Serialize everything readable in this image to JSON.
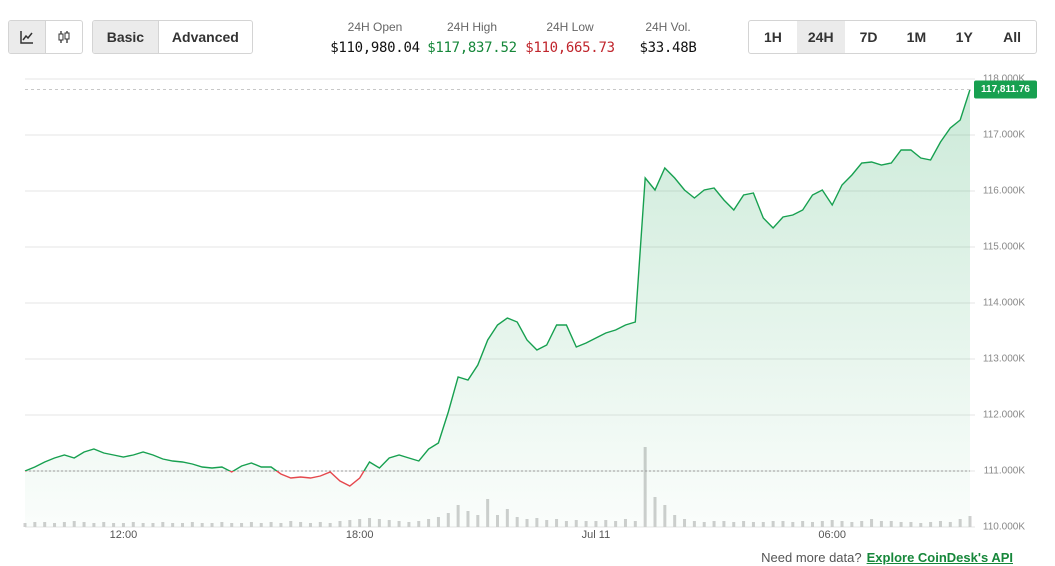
{
  "toolbar": {
    "modes": [
      "Basic",
      "Advanced"
    ],
    "active_mode": "Basic",
    "ranges": [
      "1H",
      "24H",
      "7D",
      "1M",
      "1Y",
      "All"
    ],
    "active_range": "24H"
  },
  "stats": [
    {
      "label": "24H Open",
      "value": "$110,980.04",
      "color": "#111111"
    },
    {
      "label": "24H High",
      "value": "$117,837.52",
      "color": "#16873a"
    },
    {
      "label": "24H Low",
      "value": "$110,665.73",
      "color": "#c0262d"
    },
    {
      "label": "24H Vol.",
      "value": "$33.48B",
      "color": "#111111"
    }
  ],
  "chart_data": {
    "type": "line",
    "categories": [
      null,
      null,
      null,
      null,
      null,
      null,
      null,
      null,
      null,
      null,
      "12:00",
      null,
      null,
      null,
      null,
      null,
      null,
      null,
      null,
      null,
      null,
      null,
      null,
      null,
      null,
      null,
      null,
      null,
      null,
      null,
      null,
      null,
      null,
      null,
      "18:00",
      null,
      null,
      null,
      null,
      null,
      null,
      null,
      null,
      null,
      null,
      null,
      null,
      null,
      null,
      null,
      null,
      null,
      null,
      null,
      null,
      null,
      null,
      null,
      "Jul 11",
      null,
      null,
      null,
      null,
      null,
      null,
      null,
      null,
      null,
      null,
      null,
      null,
      null,
      null,
      null,
      null,
      null,
      null,
      null,
      null,
      null,
      null,
      null,
      "06:00",
      null,
      null,
      null,
      null,
      null,
      null,
      null,
      null,
      null,
      null,
      null,
      null,
      null,
      null
    ],
    "series": [
      {
        "type": "line",
        "color": "#17a050",
        "down_color": "#e5484d",
        "values": [
          111000,
          111071,
          111161,
          111232,
          111286,
          111232,
          111339,
          111393,
          111321,
          111286,
          111250,
          111286,
          111339,
          111286,
          111214,
          111179,
          111161,
          111125,
          111071,
          111054,
          111071,
          110982,
          111089,
          111143,
          111071,
          111071,
          110946,
          110875,
          110893,
          110875,
          110911,
          110982,
          110821,
          110732,
          110875,
          111161,
          111054,
          111232,
          111286,
          111232,
          111179,
          111393,
          111500,
          112054,
          112679,
          112625,
          112893,
          113339,
          113607,
          113732,
          113661,
          113339,
          113161,
          113250,
          113607,
          113607,
          113214,
          113286,
          113375,
          113464,
          113518,
          113607,
          113661,
          116232,
          116018,
          116411,
          116232,
          116018,
          115875,
          116018,
          116054,
          115839,
          115661,
          115929,
          115964,
          115518,
          115339,
          115536,
          115571,
          115661,
          115929,
          116018,
          115750,
          116107,
          116286,
          116500,
          116518,
          116464,
          116500,
          116732,
          116732,
          116589,
          116554,
          116875,
          117125,
          117268,
          117811.76
        ],
        "value_labels": [
          null,
          null,
          null,
          null,
          null,
          null,
          null,
          null,
          null,
          null,
          null,
          null,
          null,
          null,
          null,
          null,
          null,
          null,
          null,
          null,
          null,
          null,
          null,
          null,
          null,
          null,
          null,
          null,
          null,
          null,
          null,
          null,
          null,
          null,
          null,
          null,
          null,
          null,
          null,
          null,
          null,
          null,
          null,
          null,
          null,
          null,
          null,
          null,
          null,
          null,
          null,
          null,
          null,
          null,
          null,
          null,
          null,
          null,
          null,
          null,
          null,
          null,
          null,
          null,
          null,
          null,
          null,
          null,
          null,
          null,
          null,
          null,
          null,
          null,
          null,
          null,
          null,
          null,
          null,
          null,
          null,
          null,
          null,
          null,
          null,
          null,
          null,
          null,
          null,
          null,
          null,
          null,
          null,
          null,
          null,
          null,
          "117,811.76"
        ]
      },
      {
        "type": "bar",
        "axis": "y2",
        "color": "#cfcfcf",
        "values": [
          4,
          5,
          5,
          4,
          5,
          6,
          5,
          4,
          5,
          4,
          4,
          5,
          4,
          4,
          5,
          4,
          4,
          5,
          4,
          4,
          5,
          4,
          4,
          5,
          4,
          5,
          4,
          6,
          5,
          4,
          5,
          4,
          6,
          7,
          8,
          9,
          8,
          7,
          6,
          5,
          6,
          8,
          10,
          14,
          22,
          16,
          12,
          28,
          12,
          18,
          10,
          8,
          9,
          7,
          8,
          6,
          7,
          6,
          6,
          7,
          6,
          8,
          6,
          80,
          30,
          22,
          12,
          8,
          6,
          5,
          6,
          6,
          5,
          6,
          5,
          5,
          6,
          6,
          5,
          6,
          5,
          6,
          7,
          6,
          5,
          6,
          8,
          6,
          6,
          5,
          5,
          4,
          5,
          6,
          5,
          8,
          11
        ]
      }
    ],
    "ylim": [
      110000,
      118000
    ],
    "yticks": [
      {
        "value": 110000,
        "label": "110.000K"
      },
      {
        "value": 111000,
        "label": "111.000K"
      },
      {
        "value": 112000,
        "label": "112.000K"
      },
      {
        "value": 113000,
        "label": "113.000K"
      },
      {
        "value": 114000,
        "label": "114.000K"
      },
      {
        "value": 115000,
        "label": "115.000K"
      },
      {
        "value": 116000,
        "label": "116.000K"
      },
      {
        "value": 117000,
        "label": "117.000K"
      },
      {
        "value": 118000,
        "label": "118.000K"
      }
    ],
    "y2lim": [
      0,
      100
    ],
    "grid": true
  },
  "footer": {
    "text": "Need more data?",
    "link": "Explore CoinDesk's API"
  }
}
